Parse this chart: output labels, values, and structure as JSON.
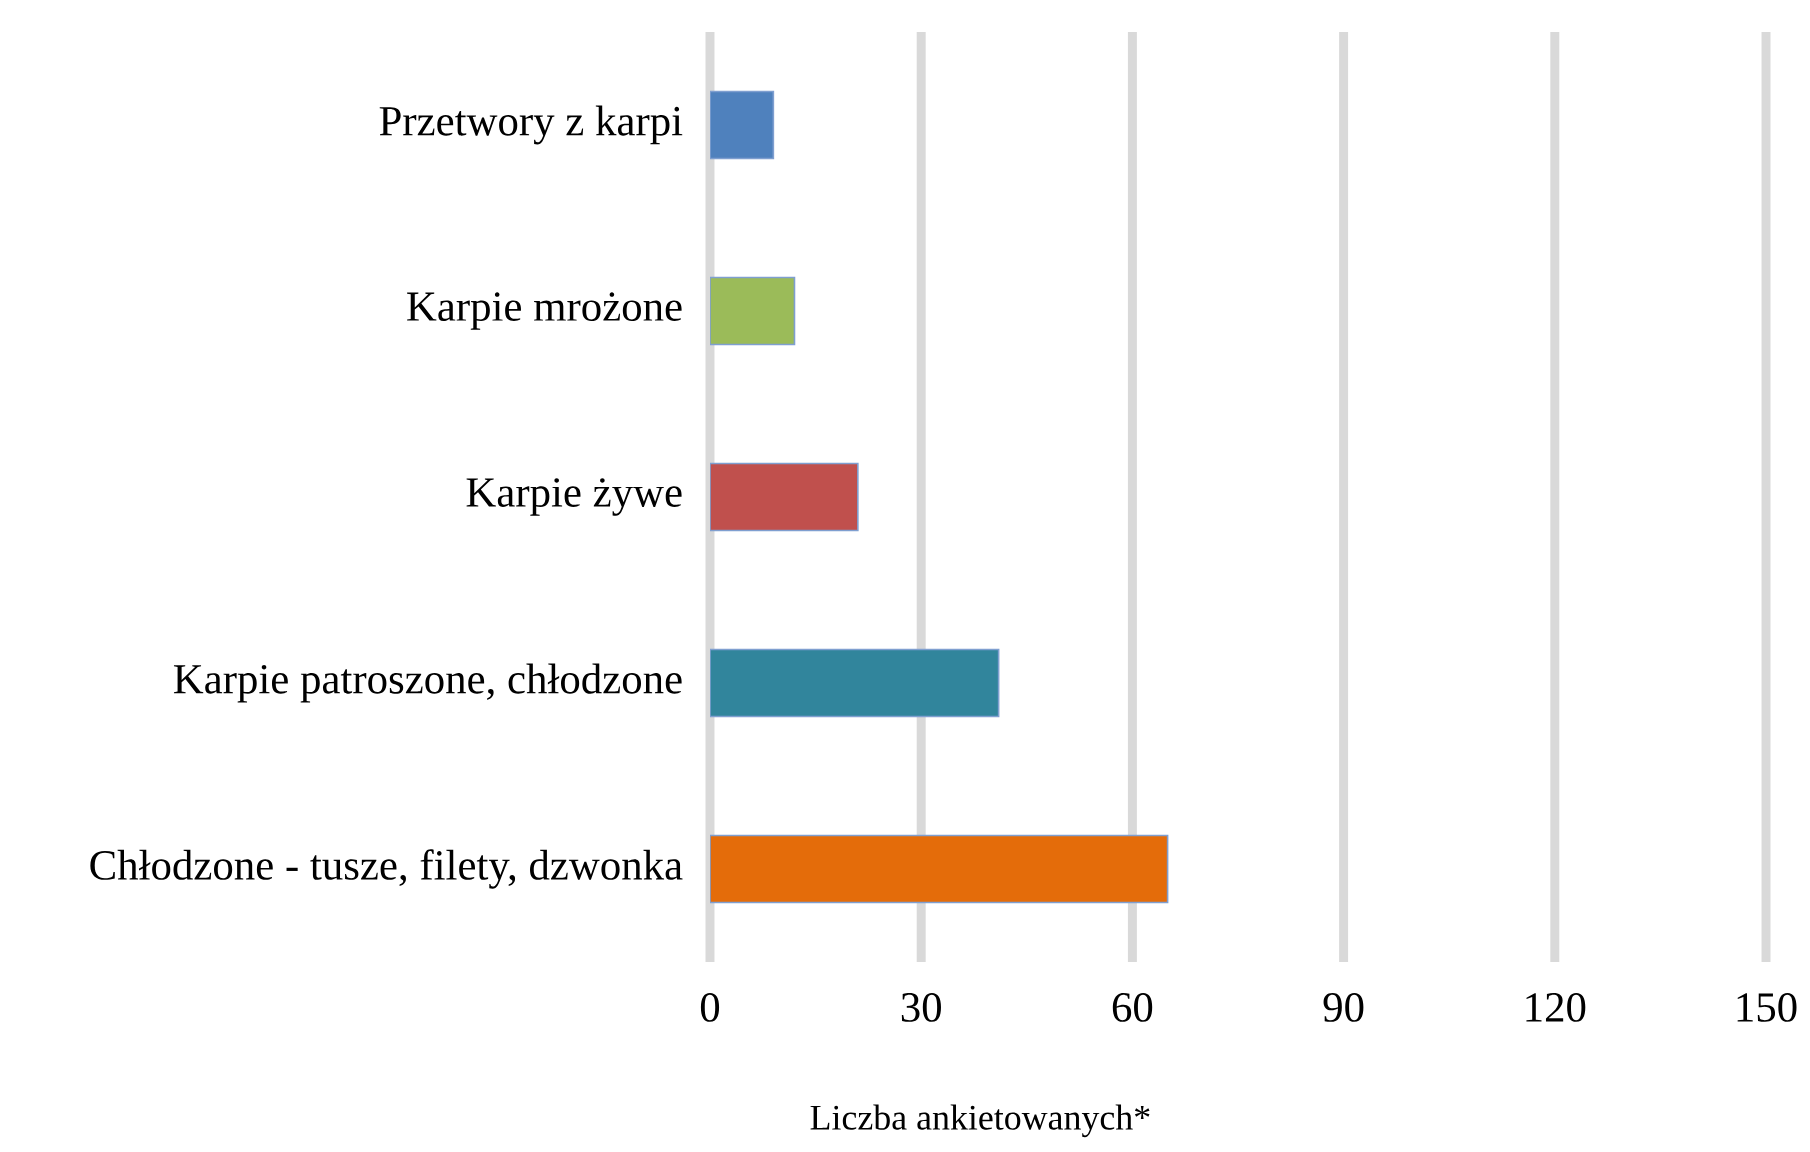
{
  "chart_data": {
    "type": "bar",
    "orientation": "horizontal",
    "xlabel": "Liczba ankietowanych*",
    "categories": [
      "Przetwory z karpi",
      "Karpie mrożone",
      "Karpie żywe",
      "Karpie patroszone, chłodzone",
      "Chłodzone - tusze, filety, dzwonka"
    ],
    "values": [
      9,
      12,
      21,
      41,
      65
    ],
    "colors": [
      "#4f81bd",
      "#9bbb59",
      "#c0504d",
      "#31859c",
      "#e46c0a"
    ],
    "xlim": [
      0,
      150
    ],
    "xticks": [
      0,
      30,
      60,
      90,
      120,
      150
    ],
    "grid": "x"
  }
}
